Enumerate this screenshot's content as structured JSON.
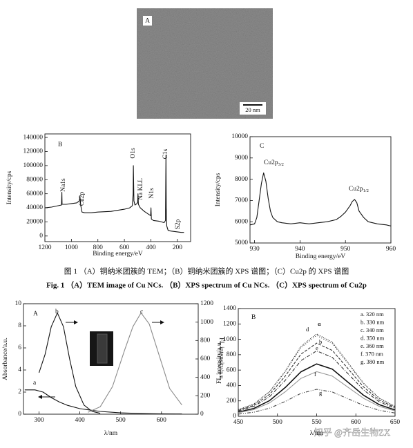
{
  "tem": {
    "label": "A",
    "scale_bar": "20 nm"
  },
  "chart_data": [
    {
      "type": "line",
      "panel_label": "B",
      "xlabel": "Binding energy/eV",
      "ylabel": "Intensity/cps",
      "xlim": [
        1200,
        100
      ],
      "ylim": [
        -8000,
        145000
      ],
      "xticks": [
        1200,
        1000,
        800,
        600,
        400,
        200
      ],
      "yticks": [
        0,
        20000,
        40000,
        60000,
        80000,
        100000,
        120000,
        140000
      ],
      "series": [
        {
          "color": "#111111",
          "dash": "none",
          "x": [
            1200,
            1150,
            1100,
            1075,
            1072,
            1070,
            1040,
            1000,
            960,
            940,
            935,
            930,
            920,
            900,
            850,
            800,
            700,
            600,
            560,
            540,
            534,
            532,
            528,
            520,
            505,
            500,
            497,
            494,
            480,
            450,
            410,
            402,
            399,
            396,
            380,
            340,
            300,
            290,
            286,
            284,
            280,
            270,
            250,
            230,
            210,
            190,
            170,
            150
          ],
          "values": [
            40000,
            41000,
            43000,
            44000,
            62000,
            45000,
            45000,
            46000,
            47000,
            50000,
            56000,
            44000,
            34000,
            33000,
            33000,
            34000,
            35000,
            38000,
            40000,
            43000,
            60000,
            100000,
            50000,
            44000,
            46000,
            48000,
            60000,
            45000,
            40000,
            35000,
            30000,
            29000,
            40000,
            24000,
            22000,
            21000,
            19000,
            22000,
            115000,
            40000,
            14000,
            8000,
            7000,
            6500,
            6000,
            5500,
            5000,
            5000
          ]
        }
      ],
      "annotations": [
        {
          "text": "Na1s"
        },
        {
          "text": "Cu2p"
        },
        {
          "text": "O1s"
        },
        {
          "text": "Na KLL"
        },
        {
          "text": "N1s"
        },
        {
          "text": "C1s"
        },
        {
          "text": "S2p"
        }
      ]
    },
    {
      "type": "line",
      "panel_label": "C",
      "xlabel": "Binding energy/eV",
      "ylabel": "Intensity/cps",
      "xlim": [
        929,
        960
      ],
      "ylim": [
        5000,
        10000
      ],
      "xticks": [
        930,
        940,
        950,
        960
      ],
      "yticks": [
        5000,
        6000,
        7000,
        8000,
        9000,
        10000
      ],
      "series": [
        {
          "color": "#111111",
          "dash": "none",
          "x": [
            929,
            930,
            930.5,
            931,
            931.5,
            932,
            932.5,
            933,
            933.5,
            934,
            935,
            936,
            938,
            940,
            942,
            944,
            946,
            948,
            949,
            950,
            951,
            951.5,
            952,
            952.5,
            953,
            954,
            955,
            957,
            959,
            960
          ],
          "values": [
            5850,
            5900,
            6200,
            7000,
            7800,
            8300,
            7900,
            7100,
            6500,
            6200,
            6000,
            5950,
            5900,
            5950,
            5900,
            5950,
            6000,
            6100,
            6250,
            6450,
            6750,
            6950,
            7050,
            6900,
            6500,
            6200,
            6000,
            5900,
            5850,
            5800
          ]
        }
      ],
      "annotations": [
        {
          "text": "Cu2p",
          "sub": "3/2"
        },
        {
          "text": "Cu2p",
          "sub": "1/2"
        }
      ]
    },
    {
      "type": "line",
      "panel_label": "A",
      "xlabel": "λ/nm",
      "ylabel": "Absorbance/a.u.",
      "y2label": "FL intensity/a.u.",
      "xlim": [
        262,
        690
      ],
      "ylim": [
        0,
        10
      ],
      "y2lim": [
        0,
        1200
      ],
      "xticks": [
        300,
        400,
        500,
        600
      ],
      "yticks": [
        0,
        2,
        4,
        6,
        8,
        10
      ],
      "y2ticks": [
        0,
        200,
        400,
        600,
        800,
        1000,
        1200
      ],
      "series": [
        {
          "name": "a",
          "color": "#111111",
          "dash": "none",
          "axis": "y",
          "x": [
            265,
            290,
            310,
            330,
            350,
            370,
            400,
            450,
            500,
            550,
            600,
            650
          ],
          "values": [
            2.2,
            2.2,
            2.0,
            1.5,
            1.1,
            0.8,
            0.5,
            0.25,
            0.12,
            0.06,
            0.03,
            0.02
          ]
        },
        {
          "name": "b",
          "color": "#111111",
          "dash": "none",
          "axis": "y2",
          "x": [
            300,
            315,
            330,
            345,
            360,
            375,
            390,
            410,
            430,
            450
          ],
          "values": [
            450,
            650,
            950,
            1100,
            950,
            600,
            300,
            100,
            30,
            10
          ]
        },
        {
          "name": "c",
          "color": "#8a8a8a",
          "dash": "none",
          "axis": "y2",
          "x": [
            420,
            450,
            480,
            510,
            530,
            550,
            570,
            590,
            620,
            650
          ],
          "values": [
            20,
            80,
            300,
            700,
            950,
            1100,
            980,
            700,
            280,
            100
          ]
        }
      ]
    },
    {
      "type": "line",
      "panel_label": "B",
      "xlabel": "λ/nm",
      "ylabel": "FL intensity/a.u.",
      "xlim": [
        450,
        650
      ],
      "ylim": [
        0,
        1400
      ],
      "xticks": [
        450,
        500,
        550,
        600,
        650
      ],
      "yticks": [
        0,
        200,
        400,
        600,
        800,
        1000,
        1200,
        1400
      ],
      "x": [
        450,
        470,
        490,
        510,
        530,
        550,
        570,
        590,
        610,
        630,
        650
      ],
      "series": [
        {
          "name": "a. 320 nm",
          "curve_label": "a",
          "color": "#111111",
          "dash": "none",
          "values": [
            54,
            102,
            204,
            374,
            578,
            680,
            612,
            442,
            272,
            150,
            82
          ]
        },
        {
          "name": "b. 330 nm",
          "curve_label": "b",
          "color": "#333333",
          "dash": "4,2",
          "values": [
            76,
            143,
            285,
            523,
            808,
            950,
            855,
            618,
            380,
            209,
            114
          ]
        },
        {
          "name": "c. 340 nm",
          "curve_label": "c",
          "color": "#222222",
          "dash": "1,1.5",
          "values": [
            86,
            160,
            321,
            589,
            910,
            1070,
            963,
            696,
            428,
            235,
            128
          ]
        },
        {
          "name": "d. 350 nm",
          "curve_label": "d",
          "color": "#444444",
          "dash": "1,2.5",
          "values": [
            84,
            158,
            315,
            578,
            893,
            1050,
            945,
            683,
            420,
            231,
            126
          ]
        },
        {
          "name": "e. 360 nm",
          "curve_label": "e",
          "color": "#333333",
          "dash": "5,2,1,2",
          "values": [
            68,
            128,
            255,
            468,
            723,
            850,
            765,
            553,
            340,
            187,
            102
          ]
        },
        {
          "name": "f. 370 nm",
          "curve_label": "f",
          "color": "#999999",
          "dash": "none",
          "values": [
            46,
            87,
            174,
            319,
            493,
            580,
            522,
            377,
            232,
            128,
            70
          ]
        },
        {
          "name": "g. 380 nm",
          "curve_label": "g",
          "color": "#444444",
          "dash": "5,2,1,2,1,2",
          "values": [
            28,
            53,
            105,
            193,
            298,
            350,
            315,
            228,
            140,
            77,
            42
          ]
        }
      ]
    }
  ],
  "caption_zh": "图 1 （A）铜纳米团簇的 TEM；（B）铜纳米团簇的 XPS 谱图；（C）Cu2p 的 XPS 谱图",
  "caption_en": "Fig. 1 （A）TEM image of Cu NCs. （B）XPS spectrum of Cu NCs. （C）XPS spectrum of Cu2p",
  "watermark": "知乎 @齐岳生物ZX"
}
